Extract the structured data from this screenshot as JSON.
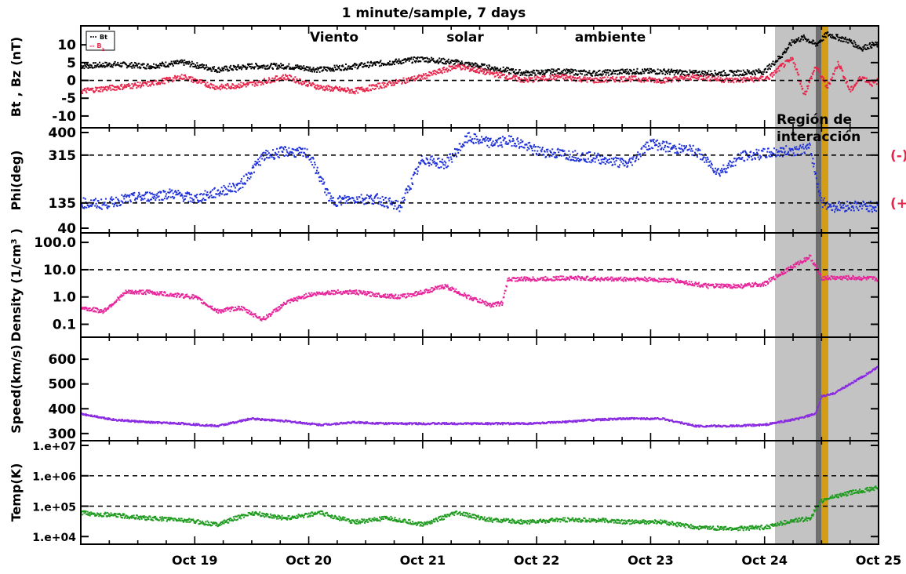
{
  "title": "1 minute/sample, 7 days",
  "annotations": {
    "ambient_words": [
      "Viento",
      "solar",
      "ambiente"
    ],
    "region_line1": "Región  de",
    "region_line2": "interacción"
  },
  "colors": {
    "bt": "#000000",
    "bz": "#e8244a",
    "phi": "#1c2fd9",
    "density": "#e8249a",
    "speed": "#8a2be2",
    "temp": "#1e9b1e",
    "shade": "#c3c3c3",
    "shock_line": "#6f6f6f",
    "sheath_band": "#d39e16",
    "sector": "#e8244a"
  },
  "chart_data": {
    "type": "line",
    "x_time_range": [
      "Oct 18 (start)",
      "Oct 25"
    ],
    "x_tick_labels": [
      "Oct 19",
      "Oct 20",
      "Oct 21",
      "Oct 22",
      "Oct 23",
      "Oct 24",
      "Oct 25"
    ],
    "shaded_interval": {
      "label": "Región de interacción",
      "start": "Oct 24 ~00:40",
      "end": "Oct 25"
    },
    "shock_line": "Oct 24 ~09:40",
    "sheath_band": {
      "start": "Oct 24 ~10:00",
      "end": "Oct 24 ~11:45"
    },
    "panels": [
      {
        "ylabel_parts": [
          "Bt",
          ",",
          "Bz",
          "(nT)"
        ],
        "y_ticks": [
          "10",
          "5",
          "0",
          "-5",
          "-10"
        ],
        "ylim": [
          -12,
          14
        ],
        "dashed_lines": [
          0
        ],
        "legend": [
          "Bt",
          "-- B",
          "z"
        ],
        "series": [
          {
            "name": "Bt",
            "x_days": [
              0,
              0.3,
              0.6,
              0.9,
              1.2,
              1.5,
              1.8,
              2.1,
              2.4,
              2.7,
              3.0,
              3.3,
              3.6,
              3.9,
              4.2,
              4.5,
              4.8,
              5.1,
              5.4,
              5.7,
              6.0,
              6.05,
              6.15,
              6.25,
              6.35,
              6.45,
              6.55,
              6.65,
              6.75,
              6.85,
              6.95,
              7.0
            ],
            "values": [
              4,
              4.5,
              4,
              5,
              3,
              4,
              4,
              3,
              4,
              5,
              6,
              5,
              3.5,
              2,
              2.5,
              2,
              2.5,
              2.5,
              2,
              2,
              2.5,
              4,
              7,
              11,
              12,
              10,
              13,
              12,
              11,
              9,
              10,
              10
            ]
          },
          {
            "name": "Bz",
            "x_days": [
              0,
              0.3,
              0.6,
              0.9,
              1.2,
              1.5,
              1.8,
              2.1,
              2.4,
              2.7,
              3.0,
              3.3,
              3.6,
              3.9,
              4.2,
              4.5,
              4.8,
              5.1,
              5.4,
              5.7,
              6.0,
              6.05,
              6.15,
              6.25,
              6.35,
              6.45,
              6.55,
              6.65,
              6.75,
              6.85,
              6.95,
              7.0
            ],
            "values": [
              -3,
              -2,
              -1,
              1,
              -2,
              -1,
              1,
              -2,
              -3,
              -1,
              1,
              4,
              2,
              0,
              1,
              0,
              0.5,
              0,
              1,
              0,
              0.5,
              1,
              4,
              6,
              -4,
              4,
              -2,
              5,
              -3,
              1,
              -1,
              0
            ]
          }
        ]
      },
      {
        "ylabel_parts": [
          "Phi(deg)"
        ],
        "y_ticks": [
          "400",
          "315",
          "135",
          "40"
        ],
        "ylim": [
          40,
          400
        ],
        "dashed_lines": [
          315,
          135
        ],
        "sector_labels": [
          "(-)",
          "(+"
        ],
        "series": [
          {
            "name": "Phi",
            "x_days": [
              0,
              0.2,
              0.4,
              0.6,
              0.8,
              1.0,
              1.2,
              1.4,
              1.6,
              1.8,
              2.0,
              2.2,
              2.4,
              2.6,
              2.8,
              3.0,
              3.2,
              3.4,
              3.6,
              3.8,
              4.0,
              4.2,
              4.4,
              4.6,
              4.8,
              5.0,
              5.2,
              5.4,
              5.6,
              5.8,
              6.0,
              6.2,
              6.4,
              6.5,
              6.6,
              6.8,
              7.0
            ],
            "values": [
              135,
              130,
              150,
              160,
              170,
              150,
              175,
              200,
              310,
              330,
              320,
              140,
              150,
              150,
              120,
              300,
              280,
              380,
              360,
              370,
              330,
              320,
              310,
              300,
              280,
              360,
              340,
              330,
              250,
              310,
              320,
              330,
              340,
              140,
              120,
              125,
              120
            ]
          }
        ]
      },
      {
        "ylabel_parts": [
          "Density (1/cm",
          "3",
          ")"
        ],
        "y_ticks": [
          "100.0",
          "10.0",
          "1.0",
          "0.1"
        ],
        "log_scale": true,
        "ylim": [
          0.05,
          150
        ],
        "dashed_lines": [
          10
        ],
        "series": [
          {
            "name": "Density",
            "x_days": [
              0,
              0.2,
              0.4,
              0.6,
              0.8,
              1.0,
              1.2,
              1.4,
              1.6,
              1.8,
              2.0,
              2.2,
              2.4,
              2.6,
              2.8,
              3.0,
              3.2,
              3.4,
              3.6,
              3.7,
              3.75,
              4.0,
              4.3,
              4.6,
              4.9,
              5.2,
              5.5,
              5.8,
              6.0,
              6.2,
              6.4,
              6.5,
              6.6,
              6.8,
              7.0
            ],
            "values": [
              0.4,
              0.3,
              1.5,
              1.5,
              1.2,
              1.0,
              0.3,
              0.4,
              0.15,
              0.6,
              1.2,
              1.5,
              1.5,
              1.2,
              1.0,
              1.5,
              2.5,
              1.0,
              0.5,
              0.6,
              4.5,
              4.5,
              5.0,
              4.5,
              4.5,
              4.0,
              2.5,
              2.5,
              3.0,
              10,
              30,
              5,
              5,
              5,
              4.5
            ]
          }
        ]
      },
      {
        "ylabel_parts": [
          "Speed(km/s)"
        ],
        "y_ticks": [
          "600",
          "500",
          "400",
          "300"
        ],
        "ylim": [
          290,
          670
        ],
        "dashed_lines": [],
        "series": [
          {
            "name": "Speed",
            "x_days": [
              0,
              0.3,
              0.6,
              0.9,
              1.2,
              1.5,
              1.8,
              2.1,
              2.4,
              2.7,
              3.0,
              3.3,
              3.6,
              3.9,
              4.2,
              4.5,
              4.8,
              5.1,
              5.4,
              5.7,
              6.0,
              6.3,
              6.45,
              6.5,
              6.6,
              6.75,
              6.9,
              7.0
            ],
            "values": [
              380,
              355,
              345,
              340,
              330,
              360,
              350,
              335,
              345,
              340,
              340,
              340,
              340,
              340,
              345,
              355,
              360,
              360,
              330,
              330,
              335,
              360,
              380,
              450,
              460,
              500,
              540,
              570
            ]
          }
        ]
      },
      {
        "ylabel_parts": [
          "Temp(K)"
        ],
        "y_ticks": [
          "1.e+07",
          "1.e+06",
          "1.e+05",
          "1.e+04"
        ],
        "log_scale": true,
        "ylim": [
          8000,
          10000000.0
        ],
        "dashed_lines": [
          1000000.0,
          100000.0
        ],
        "series": [
          {
            "name": "Temp",
            "x_days": [
              0,
              0.3,
              0.6,
              0.9,
              1.2,
              1.5,
              1.8,
              2.1,
              2.4,
              2.7,
              3.0,
              3.3,
              3.6,
              3.9,
              4.2,
              4.5,
              4.8,
              5.1,
              5.4,
              5.7,
              6.0,
              6.2,
              6.4,
              6.5,
              6.6,
              6.8,
              7.0
            ],
            "values": [
              60000,
              50000,
              40000,
              35000,
              25000,
              60000,
              40000,
              60000,
              30000,
              40000,
              25000,
              60000,
              35000,
              30000,
              35000,
              35000,
              30000,
              30000,
              20000,
              18000,
              20000,
              30000,
              40000,
              150000,
              200000,
              300000,
              400000
            ]
          }
        ]
      }
    ]
  }
}
